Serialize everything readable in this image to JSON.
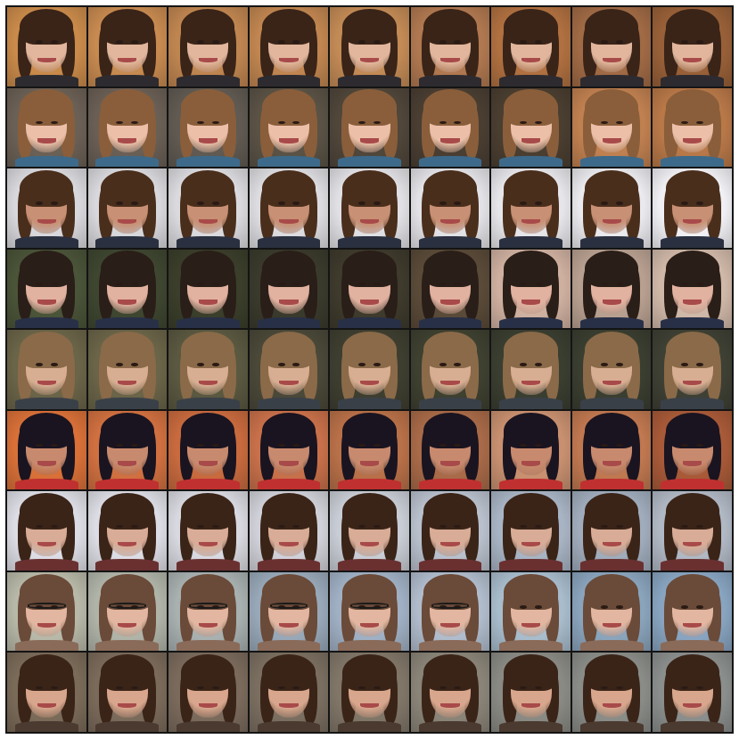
{
  "grid": {
    "rows": 9,
    "cols": 9,
    "description_free": true
  },
  "palette": {
    "border": "#141414",
    "background": "#ffffff"
  },
  "rows": [
    {
      "bg": [
        "#c98a4a",
        "#c78a50",
        "#bf8550",
        "#c08550",
        "#c28a55",
        "#b07850",
        "#b07040",
        "#a06a45",
        "#986038"
      ],
      "skin": "#e2b69c",
      "hair": "#3a2418",
      "shirt": "#2d2b30",
      "glasses": false
    },
    {
      "bg": [
        "#6b6055",
        "#6a5f55",
        "#605a52",
        "#5a5245",
        "#50463a",
        "#4a3e32",
        "#4a3e30",
        "#c08050",
        "#b87848"
      ],
      "skin": "#ecc0a8",
      "hair": "#8a5e3a",
      "shirt": "#3d6a8a",
      "glasses": false
    },
    {
      "bg": [
        "#d8d8dc",
        "#d8d8dc",
        "#dadade",
        "#dcdce0",
        "#e0e0e4",
        "#e2e2e6",
        "#e6e6ea",
        "#eaeaee",
        "#f0f0f4"
      ],
      "skin": "#c89074",
      "hair": "#4a2e1c",
      "shirt": "#2a3040",
      "glasses": false
    },
    {
      "bg": [
        "#4a5438",
        "#3e4630",
        "#3a3e2a",
        "#3a3a2c",
        "#3e3a2c",
        "#5a4a38",
        "#cfb0a0",
        "#b8a090",
        "#d0b8a8"
      ],
      "skin": "#e2b2a0",
      "hair": "#2a1e18",
      "shirt": "#283048",
      "glasses": false
    },
    {
      "bg": [
        "#6a6448",
        "#6a6448",
        "#5a5840",
        "#4a4838",
        "#3e3e30",
        "#3e4030",
        "#3a3e30",
        "#3a3e30",
        "#3e4034"
      ],
      "skin": "#d8ae92",
      "hair": "#8a6a48",
      "shirt": "#3a4048",
      "glasses": false
    },
    {
      "bg": [
        "#d87038",
        "#d07040",
        "#c86a3e",
        "#c8704a",
        "#b87048",
        "#a86a48",
        "#c89070",
        "#c07850",
        "#a85a38"
      ],
      "skin": "#c88a6e",
      "hair": "#1a1420",
      "shirt": "#c03030",
      "glasses": false
    },
    {
      "bg": [
        "#dcdce4",
        "#dcdce4",
        "#d8d8e0",
        "#d0d0d8",
        "#c8ccd4",
        "#b8c0cc",
        "#a8b4c4",
        "#a0acbc",
        "#b0b8c4"
      ],
      "skin": "#d8ac96",
      "hair": "#3a2418",
      "shirt": "#6a3030",
      "glasses": false
    },
    {
      "bg": [
        "#b8b8a8",
        "#b0b4a8",
        "#a8b0b0",
        "#98a8b8",
        "#a0b0c4",
        "#b0bccc",
        "#a8bccc",
        "#8aa4bc",
        "#88a4c0"
      ],
      "skin": "#e2b6a0",
      "hair": "#6a4a38",
      "shirt": "#8a6a58",
      "glasses": true
    },
    {
      "bg": [
        "#7a6a58",
        "#7a6a5a",
        "#7a6a5c",
        "#7a6e60",
        "#807668",
        "#8a8478",
        "#8a8a84",
        "#8a8c88",
        "#8a8e8c"
      ],
      "skin": "#d8a68c",
      "hair": "#3a2418",
      "shirt": "#4a3a30",
      "glasses": false
    }
  ]
}
